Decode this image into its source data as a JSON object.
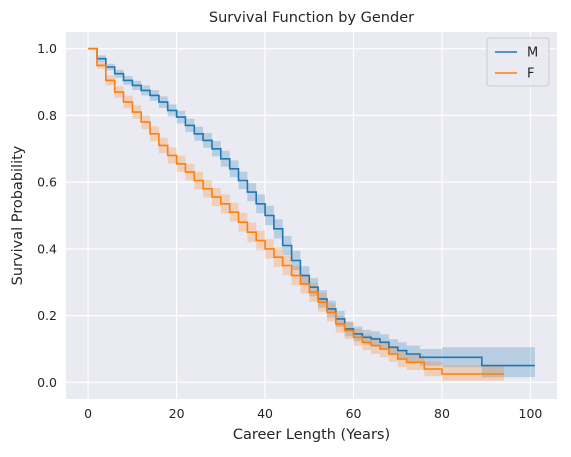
{
  "chart_data": {
    "type": "line",
    "title": "Survival Function by Gender",
    "xlabel": "Career Length (Years)",
    "ylabel": "Survival Probability",
    "xlim": [
      -5,
      106
    ],
    "ylim": [
      -0.05,
      1.05
    ],
    "xticks": [
      0,
      20,
      40,
      60,
      80,
      100
    ],
    "yticks": [
      0.0,
      0.2,
      0.4,
      0.6,
      0.8,
      1.0
    ],
    "grid": true,
    "legend": "top-right",
    "series": [
      {
        "name": "M",
        "color": "#1f77b4",
        "x": [
          0,
          2,
          4,
          6,
          8,
          10,
          12,
          14,
          16,
          18,
          20,
          22,
          24,
          26,
          28,
          30,
          32,
          34,
          36,
          38,
          40,
          42,
          44,
          46,
          48,
          50,
          52,
          54,
          56,
          58,
          60,
          62,
          64,
          66,
          68,
          70,
          72,
          75,
          80,
          85,
          89,
          95,
          101
        ],
        "y": [
          1.0,
          0.97,
          0.945,
          0.925,
          0.905,
          0.89,
          0.875,
          0.86,
          0.84,
          0.815,
          0.795,
          0.77,
          0.745,
          0.725,
          0.7,
          0.67,
          0.64,
          0.605,
          0.57,
          0.535,
          0.5,
          0.46,
          0.41,
          0.365,
          0.32,
          0.285,
          0.25,
          0.22,
          0.19,
          0.16,
          0.145,
          0.135,
          0.13,
          0.12,
          0.105,
          0.095,
          0.085,
          0.075,
          0.075,
          0.075,
          0.05,
          0.05,
          0.05
        ],
        "ci_lower": [
          1.0,
          0.96,
          0.935,
          0.913,
          0.892,
          0.876,
          0.86,
          0.844,
          0.823,
          0.797,
          0.776,
          0.75,
          0.724,
          0.703,
          0.677,
          0.646,
          0.615,
          0.579,
          0.543,
          0.507,
          0.471,
          0.431,
          0.381,
          0.336,
          0.292,
          0.258,
          0.224,
          0.195,
          0.166,
          0.138,
          0.123,
          0.113,
          0.107,
          0.096,
          0.081,
          0.07,
          0.06,
          0.05,
          0.045,
          0.045,
          0.015,
          0.015,
          0.015
        ],
        "ci_upper": [
          1.0,
          0.98,
          0.955,
          0.937,
          0.918,
          0.904,
          0.89,
          0.876,
          0.857,
          0.833,
          0.814,
          0.79,
          0.766,
          0.747,
          0.723,
          0.694,
          0.665,
          0.631,
          0.597,
          0.563,
          0.529,
          0.489,
          0.439,
          0.394,
          0.348,
          0.312,
          0.276,
          0.245,
          0.214,
          0.182,
          0.167,
          0.157,
          0.153,
          0.144,
          0.129,
          0.12,
          0.11,
          0.1,
          0.105,
          0.105,
          0.105,
          0.105,
          0.105
        ]
      },
      {
        "name": "F",
        "color": "#ff7f0e",
        "x": [
          0,
          2,
          4,
          6,
          8,
          10,
          12,
          14,
          16,
          18,
          20,
          22,
          24,
          26,
          28,
          30,
          32,
          34,
          36,
          38,
          40,
          42,
          44,
          46,
          48,
          50,
          52,
          54,
          56,
          58,
          60,
          62,
          64,
          66,
          68,
          70,
          72,
          76,
          80,
          85,
          90,
          94
        ],
        "y": [
          1.0,
          0.95,
          0.905,
          0.87,
          0.84,
          0.81,
          0.78,
          0.745,
          0.71,
          0.68,
          0.655,
          0.63,
          0.605,
          0.58,
          0.555,
          0.535,
          0.51,
          0.48,
          0.45,
          0.425,
          0.4,
          0.375,
          0.35,
          0.32,
          0.295,
          0.27,
          0.24,
          0.21,
          0.175,
          0.155,
          0.135,
          0.12,
          0.11,
          0.1,
          0.085,
          0.07,
          0.06,
          0.04,
          0.025,
          0.025,
          0.025,
          0.025
        ],
        "ci_lower": [
          1.0,
          0.94,
          0.89,
          0.853,
          0.821,
          0.79,
          0.759,
          0.723,
          0.687,
          0.656,
          0.631,
          0.605,
          0.579,
          0.554,
          0.528,
          0.507,
          0.482,
          0.452,
          0.421,
          0.396,
          0.371,
          0.346,
          0.321,
          0.291,
          0.266,
          0.241,
          0.212,
          0.183,
          0.149,
          0.13,
          0.11,
          0.096,
          0.085,
          0.075,
          0.061,
          0.046,
          0.037,
          0.018,
          0.005,
          0.005,
          0.005,
          0.005
        ],
        "ci_upper": [
          1.0,
          0.96,
          0.92,
          0.887,
          0.859,
          0.83,
          0.801,
          0.767,
          0.733,
          0.704,
          0.679,
          0.655,
          0.631,
          0.606,
          0.582,
          0.563,
          0.538,
          0.508,
          0.479,
          0.454,
          0.429,
          0.404,
          0.379,
          0.349,
          0.324,
          0.299,
          0.268,
          0.237,
          0.201,
          0.18,
          0.16,
          0.144,
          0.135,
          0.125,
          0.109,
          0.094,
          0.083,
          0.062,
          0.05,
          0.05,
          0.05,
          0.05
        ]
      }
    ]
  }
}
